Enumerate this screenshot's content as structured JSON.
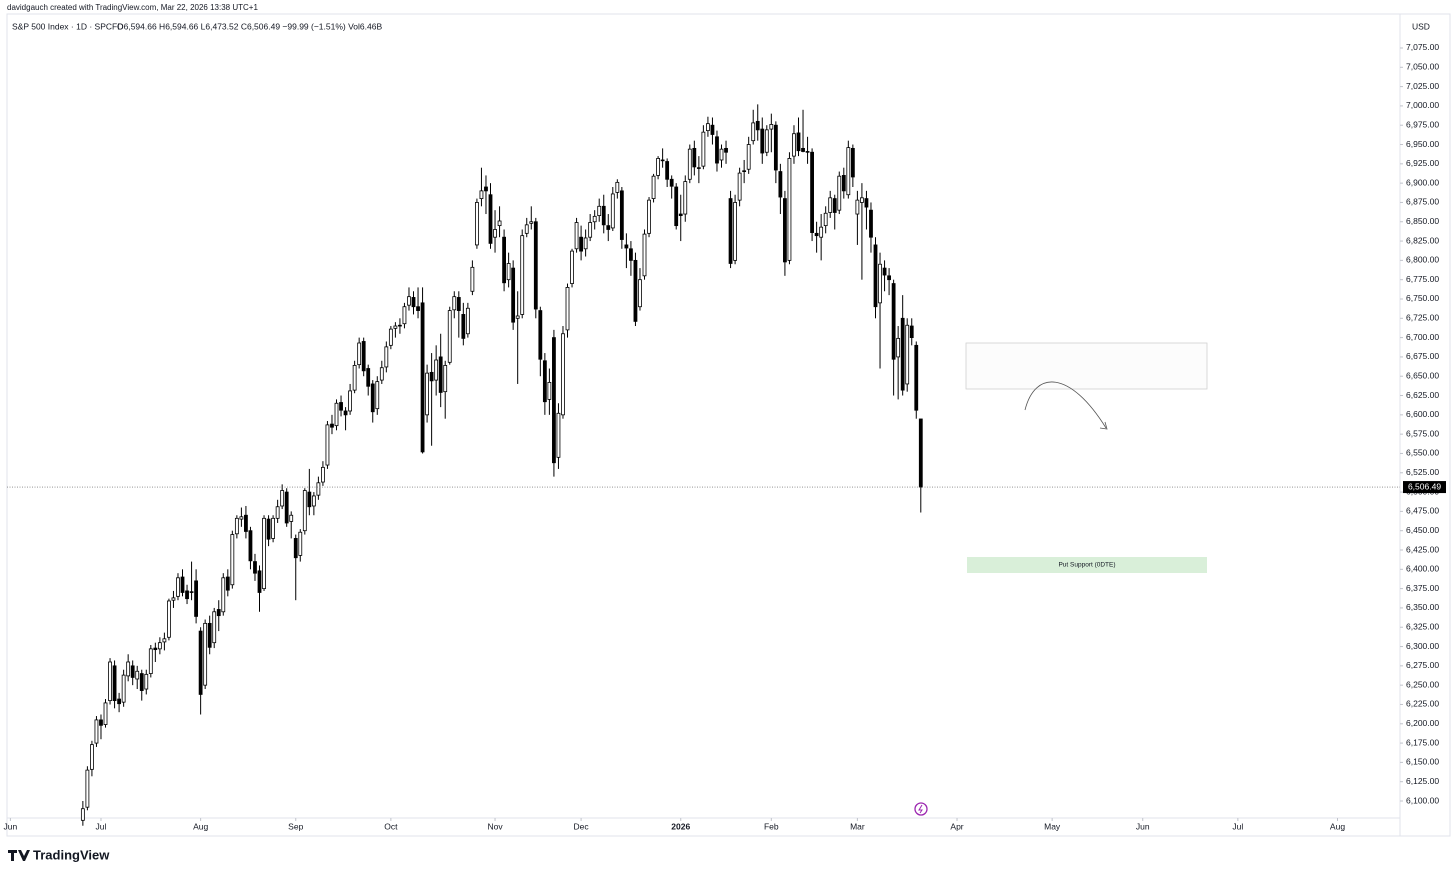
{
  "chart_data": {
    "type": "candlestick",
    "watermark": "davidgauch created with TradingView.com, Mar 22, 2026 13:38 UTC+1",
    "title": "S&P 500 Index · 1D · SPCFD",
    "legend_text": "O6,594.66  H6,594.66  L6,473.52  C6,506.49  −99.99 (−1.51%)  Vol6.46B",
    "currency": "USD",
    "brand": "TradingView",
    "annotation": "Put Support (0DTE)",
    "last_price_label": "6,506.49",
    "up_color": "#ffffff",
    "down_color": "#000000",
    "outline_color": "#000000",
    "xlim": [
      -16.75,
      290.8
    ],
    "xticks": [
      {
        "value": -16,
        "label": "Jun"
      },
      {
        "value": 4,
        "label": "Jul"
      },
      {
        "value": 26,
        "label": "Aug"
      },
      {
        "value": 47,
        "label": "Sep"
      },
      {
        "value": 68,
        "label": "Oct"
      },
      {
        "value": 91,
        "label": "Nov"
      },
      {
        "value": 110,
        "label": "Dec"
      },
      {
        "value": 132,
        "label": "2026"
      },
      {
        "value": 152,
        "label": "Feb"
      },
      {
        "value": 171,
        "label": "Mar"
      },
      {
        "value": 193,
        "label": "Apr"
      },
      {
        "value": 214,
        "label": "May"
      },
      {
        "value": 234,
        "label": "Jun"
      },
      {
        "value": 255,
        "label": "Jul"
      },
      {
        "value": 277,
        "label": "Aug"
      }
    ],
    "ylim": [
      6078,
      7119
    ],
    "yticks": [
      {
        "value": 6100,
        "label": "6,100.00"
      },
      {
        "value": 6125,
        "label": "6,125.00"
      },
      {
        "value": 6150,
        "label": "6,150.00"
      },
      {
        "value": 6175,
        "label": "6,175.00"
      },
      {
        "value": 6200,
        "label": "6,200.00"
      },
      {
        "value": 6225,
        "label": "6,225.00"
      },
      {
        "value": 6250,
        "label": "6,250.00"
      },
      {
        "value": 6275,
        "label": "6,275.00"
      },
      {
        "value": 6300,
        "label": "6,300.00"
      },
      {
        "value": 6325,
        "label": "6,325.00"
      },
      {
        "value": 6350,
        "label": "6,350.00"
      },
      {
        "value": 6375,
        "label": "6,375.00"
      },
      {
        "value": 6400,
        "label": "6,400.00"
      },
      {
        "value": 6425,
        "label": "6,425.00"
      },
      {
        "value": 6450,
        "label": "6,450.00"
      },
      {
        "value": 6475,
        "label": "6,475.00"
      },
      {
        "value": 6500,
        "label": "6,500.00"
      },
      {
        "value": 6525,
        "label": "6,525.00"
      },
      {
        "value": 6550,
        "label": "6,550.00"
      },
      {
        "value": 6575,
        "label": "6,575.00"
      },
      {
        "value": 6600,
        "label": "6,600.00"
      },
      {
        "value": 6625,
        "label": "6,625.00"
      },
      {
        "value": 6650,
        "label": "6,650.00"
      },
      {
        "value": 6675,
        "label": "6,675.00"
      },
      {
        "value": 6700,
        "label": "6,700.00"
      },
      {
        "value": 6725,
        "label": "6,725.00"
      },
      {
        "value": 6750,
        "label": "6,750.00"
      },
      {
        "value": 6775,
        "label": "6,775.00"
      },
      {
        "value": 6800,
        "label": "6,800.00"
      },
      {
        "value": 6825,
        "label": "6,825.00"
      },
      {
        "value": 6850,
        "label": "6,850.00"
      },
      {
        "value": 6875,
        "label": "6,875.00"
      },
      {
        "value": 6900,
        "label": "6,900.00"
      },
      {
        "value": 6925,
        "label": "6,925.00"
      },
      {
        "value": 6950,
        "label": "6,950.00"
      },
      {
        "value": 6975,
        "label": "6,975.00"
      },
      {
        "value": 7000,
        "label": "7,000.00"
      },
      {
        "value": 7025,
        "label": "7,025.00"
      },
      {
        "value": 7050,
        "label": "7,050.00"
      },
      {
        "value": 7075,
        "label": "7,075.00"
      }
    ],
    "candles": [
      [
        6075,
        6100,
        6068,
        6090
      ],
      [
        6092,
        6145,
        6088,
        6140
      ],
      [
        6141,
        6178,
        6132,
        6173
      ],
      [
        6175,
        6210,
        6170,
        6205
      ],
      [
        6205,
        6212,
        6180,
        6198
      ],
      [
        6199,
        6232,
        6195,
        6227
      ],
      [
        6230,
        6285,
        6225,
        6280
      ],
      [
        6275,
        6282,
        6220,
        6230
      ],
      [
        6232,
        6240,
        6215,
        6226
      ],
      [
        6228,
        6270,
        6222,
        6263
      ],
      [
        6262,
        6290,
        6255,
        6280
      ],
      [
        6275,
        6282,
        6250,
        6260
      ],
      [
        6258,
        6275,
        6245,
        6268
      ],
      [
        6265,
        6270,
        6230,
        6243
      ],
      [
        6245,
        6270,
        6238,
        6264
      ],
      [
        6265,
        6302,
        6260,
        6297
      ],
      [
        6298,
        6305,
        6280,
        6296
      ],
      [
        6297,
        6312,
        6290,
        6305
      ],
      [
        6306,
        6318,
        6295,
        6310
      ],
      [
        6312,
        6362,
        6308,
        6359
      ],
      [
        6360,
        6372,
        6350,
        6363
      ],
      [
        6365,
        6395,
        6360,
        6389
      ],
      [
        6390,
        6400,
        6365,
        6370
      ],
      [
        6372,
        6380,
        6355,
        6362
      ],
      [
        6370,
        6410,
        6360,
        6371
      ],
      [
        6385,
        6400,
        6330,
        6339
      ],
      [
        6320,
        6325,
        6212,
        6238
      ],
      [
        6250,
        6335,
        6245,
        6330
      ],
      [
        6330,
        6340,
        6290,
        6299
      ],
      [
        6305,
        6350,
        6298,
        6345
      ],
      [
        6348,
        6360,
        6320,
        6340
      ],
      [
        6345,
        6395,
        6340,
        6389
      ],
      [
        6390,
        6400,
        6365,
        6373
      ],
      [
        6380,
        6450,
        6375,
        6445
      ],
      [
        6446,
        6470,
        6440,
        6466
      ],
      [
        6465,
        6480,
        6455,
        6468
      ],
      [
        6470,
        6482,
        6440,
        6449
      ],
      [
        6450,
        6455,
        6400,
        6411
      ],
      [
        6410,
        6420,
        6385,
        6395
      ],
      [
        6398,
        6405,
        6345,
        6370
      ],
      [
        6375,
        6470,
        6372,
        6466
      ],
      [
        6465,
        6470,
        6430,
        6439
      ],
      [
        6440,
        6470,
        6435,
        6466
      ],
      [
        6466,
        6490,
        6460,
        6481
      ],
      [
        6482,
        6510,
        6478,
        6502
      ],
      [
        6500,
        6505,
        6455,
        6460
      ],
      [
        6462,
        6475,
        6440,
        6470
      ],
      [
        6440,
        6445,
        6360,
        6415
      ],
      [
        6418,
        6452,
        6410,
        6448
      ],
      [
        6450,
        6505,
        6445,
        6502
      ],
      [
        6500,
        6530,
        6470,
        6481
      ],
      [
        6482,
        6500,
        6470,
        6495
      ],
      [
        6496,
        6520,
        6490,
        6512
      ],
      [
        6513,
        6540,
        6508,
        6532
      ],
      [
        6535,
        6592,
        6530,
        6587
      ],
      [
        6588,
        6600,
        6575,
        6584
      ],
      [
        6586,
        6620,
        6580,
        6615
      ],
      [
        6616,
        6625,
        6598,
        6606
      ],
      [
        6605,
        6610,
        6580,
        6600
      ],
      [
        6605,
        6640,
        6600,
        6631
      ],
      [
        6632,
        6670,
        6628,
        6664
      ],
      [
        6665,
        6700,
        6660,
        6693
      ],
      [
        6695,
        6700,
        6650,
        6657
      ],
      [
        6660,
        6665,
        6625,
        6637
      ],
      [
        6640,
        6645,
        6590,
        6604
      ],
      [
        6608,
        6650,
        6600,
        6643
      ],
      [
        6645,
        6670,
        6640,
        6661
      ],
      [
        6662,
        6695,
        6655,
        6688
      ],
      [
        6690,
        6715,
        6685,
        6711
      ],
      [
        6712,
        6720,
        6700,
        6715
      ],
      [
        6716,
        6725,
        6705,
        6715
      ],
      [
        6718,
        6745,
        6712,
        6740
      ],
      [
        6742,
        6765,
        6735,
        6753
      ],
      [
        6752,
        6760,
        6730,
        6740
      ],
      [
        6740,
        6765,
        6725,
        6735
      ],
      [
        6745,
        6765,
        6550,
        6552
      ],
      [
        6600,
        6665,
        6590,
        6654
      ],
      [
        6655,
        6680,
        6560,
        6644
      ],
      [
        6645,
        6690,
        6625,
        6671
      ],
      [
        6675,
        6705,
        6610,
        6629
      ],
      [
        6630,
        6670,
        6595,
        6664
      ],
      [
        6668,
        6740,
        6665,
        6735
      ],
      [
        6736,
        6760,
        6725,
        6753
      ],
      [
        6752,
        6760,
        6700,
        6735
      ],
      [
        6730,
        6745,
        6690,
        6699
      ],
      [
        6705,
        6745,
        6700,
        6738
      ],
      [
        6760,
        6800,
        6755,
        6791
      ],
      [
        6820,
        6880,
        6815,
        6875
      ],
      [
        6880,
        6920,
        6870,
        6890
      ],
      [
        6895,
        6910,
        6860,
        6890
      ],
      [
        6885,
        6900,
        6815,
        6822
      ],
      [
        6830,
        6865,
        6810,
        6840
      ],
      [
        6845,
        6870,
        6830,
        6851
      ],
      [
        6830,
        6840,
        6760,
        6771
      ],
      [
        6775,
        6810,
        6765,
        6796
      ],
      [
        6790,
        6800,
        6710,
        6720
      ],
      [
        6725,
        6760,
        6640,
        6728
      ],
      [
        6730,
        6840,
        6725,
        6832
      ],
      [
        6835,
        6855,
        6830,
        6846
      ],
      [
        6848,
        6870,
        6840,
        6850
      ],
      [
        6850,
        6855,
        6725,
        6737
      ],
      [
        6735,
        6740,
        6650,
        6672
      ],
      [
        6670,
        6680,
        6600,
        6617
      ],
      [
        6620,
        6660,
        6600,
        6642
      ],
      [
        6700,
        6710,
        6520,
        6538
      ],
      [
        6545,
        6615,
        6530,
        6602
      ],
      [
        6600,
        6715,
        6595,
        6705
      ],
      [
        6710,
        6770,
        6700,
        6765
      ],
      [
        6770,
        6815,
        6765,
        6812
      ],
      [
        6815,
        6855,
        6810,
        6849
      ],
      [
        6830,
        6845,
        6800,
        6812
      ],
      [
        6815,
        6840,
        6805,
        6829
      ],
      [
        6830,
        6860,
        6825,
        6849
      ],
      [
        6850,
        6865,
        6840,
        6857
      ],
      [
        6858,
        6880,
        6850,
        6870
      ],
      [
        6870,
        6885,
        6835,
        6846
      ],
      [
        6845,
        6860,
        6825,
        6840
      ],
      [
        6842,
        6895,
        6838,
        6886
      ],
      [
        6888,
        6905,
        6880,
        6901
      ],
      [
        6890,
        6895,
        6815,
        6827
      ],
      [
        6820,
        6835,
        6790,
        6816
      ],
      [
        6815,
        6825,
        6780,
        6800
      ],
      [
        6800,
        6810,
        6715,
        6721
      ],
      [
        6740,
        6790,
        6735,
        6775
      ],
      [
        6780,
        6840,
        6775,
        6834
      ],
      [
        6835,
        6882,
        6830,
        6878
      ],
      [
        6880,
        6912,
        6875,
        6909
      ],
      [
        6910,
        6935,
        6905,
        6932
      ],
      [
        6930,
        6945,
        6920,
        6929
      ],
      [
        6928,
        6932,
        6895,
        6905
      ],
      [
        6905,
        6910,
        6880,
        6896
      ],
      [
        6895,
        6900,
        6840,
        6845
      ],
      [
        6860,
        6885,
        6825,
        6858
      ],
      [
        6860,
        6910,
        6850,
        6902
      ],
      [
        6905,
        6950,
        6900,
        6944
      ],
      [
        6945,
        6955,
        6910,
        6921
      ],
      [
        6920,
        6935,
        6900,
        6920
      ],
      [
        6922,
        6975,
        6918,
        6966
      ],
      [
        6968,
        6986,
        6960,
        6977
      ],
      [
        6975,
        6985,
        6950,
        6963
      ],
      [
        6960,
        6968,
        6915,
        6926
      ],
      [
        6930,
        6950,
        6920,
        6944
      ],
      [
        6945,
        6955,
        6925,
        6940
      ],
      [
        6880,
        6890,
        6790,
        6796
      ],
      [
        6800,
        6885,
        6795,
        6875
      ],
      [
        6878,
        6920,
        6870,
        6913
      ],
      [
        6915,
        6930,
        6900,
        6916
      ],
      [
        6918,
        6960,
        6912,
        6950
      ],
      [
        6955,
        6995,
        6950,
        6978
      ],
      [
        6980,
        7002,
        6955,
        6969
      ],
      [
        6970,
        6985,
        6925,
        6939
      ],
      [
        6940,
        6975,
        6935,
        6969
      ],
      [
        6970,
        6990,
        6940,
        6976
      ],
      [
        6975,
        6980,
        6900,
        6917
      ],
      [
        6915,
        6925,
        6860,
        6882
      ],
      [
        6880,
        6890,
        6780,
        6798
      ],
      [
        6800,
        6940,
        6795,
        6932
      ],
      [
        6935,
        6975,
        6925,
        6964
      ],
      [
        6965,
        6985,
        6935,
        6942
      ],
      [
        6945,
        6995,
        6940,
        6941
      ],
      [
        6940,
        6960,
        6925,
        6941
      ],
      [
        6940,
        6945,
        6825,
        6836
      ],
      [
        6835,
        6850,
        6810,
        6832
      ],
      [
        6830,
        6860,
        6800,
        6843
      ],
      [
        6845,
        6870,
        6835,
        6861
      ],
      [
        6862,
        6890,
        6855,
        6881
      ],
      [
        6880,
        6885,
        6840,
        6862
      ],
      [
        6865,
        6915,
        6860,
        6909
      ],
      [
        6910,
        6920,
        6880,
        6890
      ],
      [
        6885,
        6955,
        6880,
        6946
      ],
      [
        6945,
        6950,
        6895,
        6908
      ],
      [
        6860,
        6890,
        6820,
        6878
      ],
      [
        6875,
        6900,
        6775,
        6881
      ],
      [
        6880,
        6890,
        6840,
        6869
      ],
      [
        6865,
        6875,
        6810,
        6830
      ],
      [
        6820,
        6830,
        6725,
        6740
      ],
      [
        6745,
        6810,
        6660,
        6795
      ],
      [
        6790,
        6800,
        6760,
        6781
      ],
      [
        6780,
        6790,
        6755,
        6775
      ],
      [
        6770,
        6775,
        6625,
        6672
      ],
      [
        6675,
        6715,
        6620,
        6699
      ],
      [
        6725,
        6755,
        6625,
        6632
      ],
      [
        6640,
        6725,
        6630,
        6716
      ],
      [
        6715,
        6725,
        6690,
        6700
      ],
      [
        6690,
        6695,
        6595,
        6606
      ],
      [
        6594.66,
        6594.66,
        6473.52,
        6506.49
      ]
    ]
  }
}
